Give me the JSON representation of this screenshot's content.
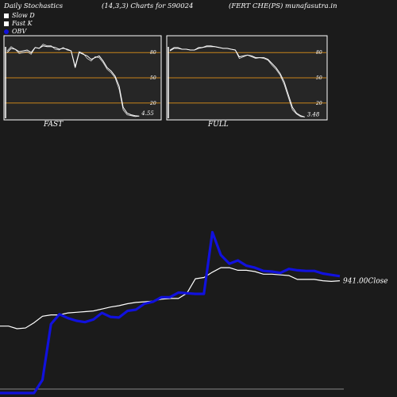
{
  "header": {
    "left": "Daily Stochastics",
    "params": "(14,3,3) Charts for 590024",
    "right": "(FERT CHE(PS) munafasutra.in"
  },
  "legend": [
    {
      "label": "Slow  D",
      "color": "#ffffff",
      "shape": "square"
    },
    {
      "label": "Fast K",
      "color": "#ffffff",
      "shape": "square"
    },
    {
      "label": "OBV",
      "color": "#1111dd",
      "shape": "circle"
    }
  ],
  "panel_fast": {
    "caption": "FAST",
    "value_label": "4.55"
  },
  "panel_full": {
    "caption": "FULL",
    "value_label": "3.48"
  },
  "close_label": "941.00Close",
  "colors": {
    "background": "#1b1b1b",
    "panel_bg": "#262626",
    "level_line": "#c8831a",
    "price": "#ffffff",
    "obv": "#1111dd"
  },
  "chart_data": [
    {
      "type": "line",
      "title": "FAST",
      "ylim": [
        0,
        100
      ],
      "yticks": [
        20,
        50,
        80
      ],
      "levels": [
        20,
        50,
        80
      ],
      "series": [
        {
          "values": [
            80,
            85,
            84,
            81,
            82,
            83,
            80,
            86,
            85,
            88,
            87,
            87,
            86,
            84,
            85,
            84,
            82,
            62,
            80,
            78,
            76,
            72,
            74,
            76,
            70,
            62,
            58,
            52,
            40,
            15,
            8,
            6,
            5,
            4.55
          ]
        },
        {
          "values": [
            82,
            87,
            84,
            79,
            80,
            81,
            78,
            86,
            85,
            90,
            88,
            88,
            84,
            83,
            86,
            83,
            82,
            64,
            81,
            79,
            73,
            70,
            75,
            74,
            68,
            60,
            56,
            50,
            36,
            12,
            6,
            5,
            4,
            4.55
          ]
        }
      ]
    },
    {
      "type": "line",
      "title": "FULL",
      "ylim": [
        0,
        100
      ],
      "yticks": [
        20,
        50,
        80
      ],
      "levels": [
        20,
        50,
        80
      ],
      "series": [
        {
          "values": [
            82,
            85,
            85,
            84,
            84,
            83,
            83,
            85,
            86,
            87,
            87,
            87,
            86,
            85,
            85,
            84,
            83,
            75,
            76,
            77,
            76,
            74,
            74,
            74,
            72,
            67,
            62,
            55,
            45,
            30,
            15,
            8,
            5,
            3.48
          ]
        },
        {
          "values": [
            83,
            86,
            86,
            84,
            84,
            83,
            83,
            86,
            86,
            88,
            88,
            87,
            86,
            85,
            85,
            84,
            83,
            73,
            75,
            77,
            75,
            73,
            74,
            73,
            71,
            65,
            60,
            53,
            42,
            27,
            12,
            7,
            4,
            3.48
          ]
        }
      ]
    },
    {
      "type": "line",
      "title": "",
      "series": [
        {
          "name": "Close",
          "values": [
            42,
            42,
            38,
            39,
            47,
            57,
            59,
            59,
            62,
            63,
            64,
            65,
            68,
            71,
            73,
            76,
            78,
            79,
            80,
            83,
            84,
            84,
            92,
            114,
            116,
            124,
            131,
            131,
            127,
            127,
            125,
            121,
            121,
            120,
            119,
            113,
            113,
            113,
            111,
            110,
            111
          ]
        },
        {
          "name": "OBV",
          "values": [
            -60,
            -60,
            -60,
            -60,
            -60,
            -40,
            45,
            60,
            54,
            50,
            48,
            52,
            62,
            56,
            55,
            65,
            67,
            76,
            79,
            86,
            86,
            93,
            92,
            91,
            91,
            185,
            150,
            137,
            142,
            134,
            131,
            126,
            125,
            123,
            129,
            127,
            126,
            126,
            122,
            120,
            118
          ]
        }
      ]
    }
  ]
}
